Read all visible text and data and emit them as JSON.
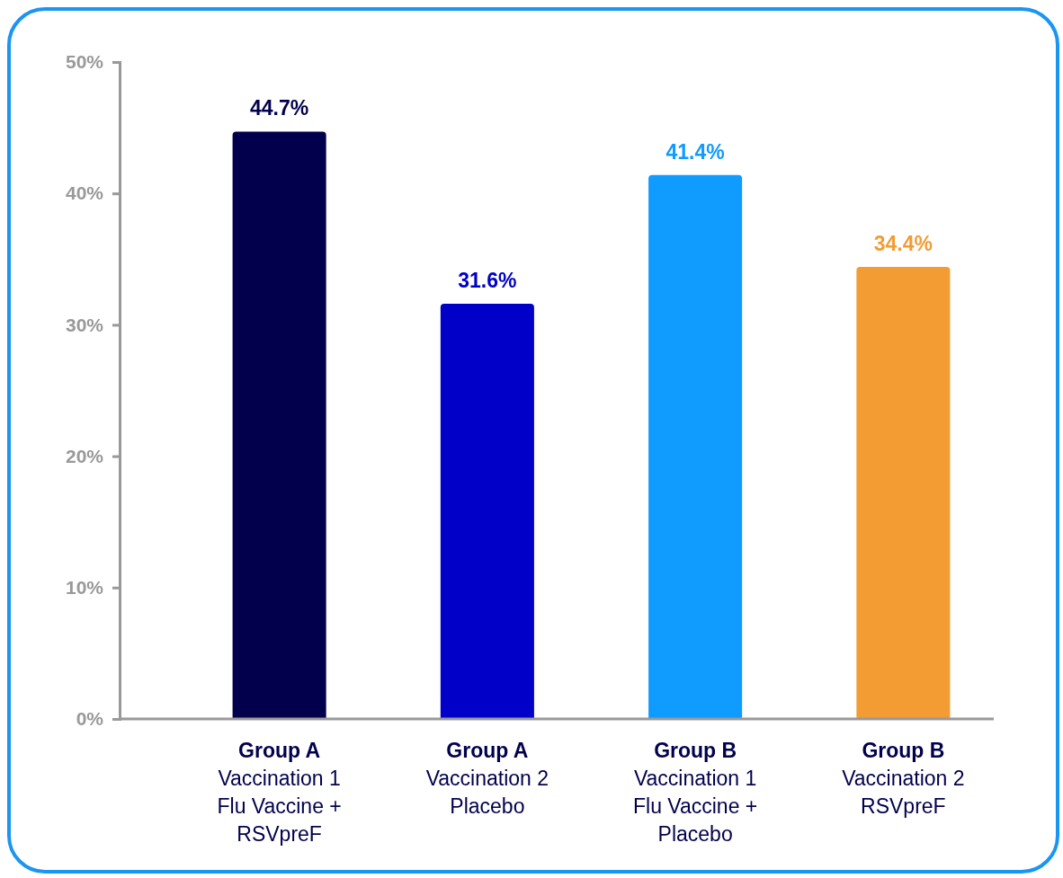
{
  "chart_data": {
    "type": "bar",
    "categories": [
      "Group A\nVaccination 1\nFlu Vaccine +\nRSVpreF",
      "Group A\nVaccination 2\nPlacebo",
      "Group B\nVaccination 1\nFlu Vaccine +\nPlacebo",
      "Group B\nVaccination 2\nRSVpreF"
    ],
    "values": [
      44.7,
      31.6,
      41.4,
      34.4
    ],
    "colors": [
      "#02004d",
      "#0000c8",
      "#0f9bff",
      "#f39c34"
    ],
    "value_labels": [
      "44.7%",
      "31.6%",
      "41.4%",
      "34.4%"
    ],
    "ylim": [
      0,
      50
    ],
    "yticks": [
      {
        "value": 0,
        "label": "0%"
      },
      {
        "value": 10,
        "label": "10%"
      },
      {
        "value": 20,
        "label": "20%"
      },
      {
        "value": 30,
        "label": "30%"
      },
      {
        "value": 40,
        "label": "40%"
      },
      {
        "value": 50,
        "label": "50%"
      }
    ],
    "grid": false
  }
}
